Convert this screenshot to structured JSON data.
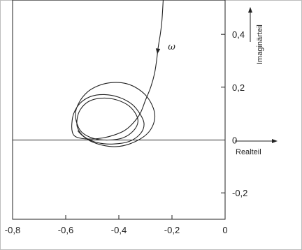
{
  "chart_data": {
    "type": "line",
    "title": "",
    "xlabel": "Realteil",
    "ylabel": "Imaginärteil",
    "xlim": [
      -0.8,
      0.0
    ],
    "ylim": [
      -0.3,
      0.53
    ],
    "x_ticks": [
      -0.8,
      -0.6,
      -0.4,
      -0.2,
      0
    ],
    "x_tick_labels": [
      "-0,8",
      "-0,6",
      "-0,4",
      "-0,2",
      "0"
    ],
    "y_ticks": [
      -0.2,
      0,
      0.2,
      0.4
    ],
    "y_tick_labels": [
      "-0,2",
      "0",
      "0,2",
      "0,4"
    ],
    "grid": false,
    "annotations": [
      {
        "text": "ω",
        "x": -0.215,
        "y": 0.355
      }
    ],
    "series": [
      {
        "points": [
          [
            -0.233,
            0.53
          ],
          [
            -0.238,
            0.45
          ],
          [
            -0.244,
            0.4
          ],
          [
            -0.252,
            0.35
          ],
          [
            -0.258,
            0.3
          ],
          [
            -0.266,
            0.25
          ],
          [
            -0.28,
            0.2
          ],
          [
            -0.3,
            0.15
          ],
          [
            -0.32,
            0.1
          ],
          [
            -0.35,
            0.06
          ],
          [
            -0.38,
            0.035
          ],
          [
            -0.42,
            0.018
          ],
          [
            -0.46,
            0.008
          ],
          [
            -0.5,
            0.004
          ],
          [
            -0.54,
            0.006
          ],
          [
            -0.565,
            0.014
          ],
          [
            -0.575,
            0.03
          ],
          [
            -0.577,
            0.06
          ],
          [
            -0.57,
            0.1
          ],
          [
            -0.545,
            0.14
          ],
          [
            -0.505,
            0.165
          ],
          [
            -0.455,
            0.172
          ],
          [
            -0.4,
            0.162
          ],
          [
            -0.35,
            0.135
          ],
          [
            -0.318,
            0.095
          ],
          [
            -0.305,
            0.06
          ],
          [
            -0.318,
            0.025
          ],
          [
            -0.36,
            -0.005
          ],
          [
            -0.42,
            -0.015
          ],
          [
            -0.48,
            -0.01
          ],
          [
            -0.53,
            0.012
          ],
          [
            -0.555,
            0.045
          ],
          [
            -0.557,
            0.08
          ],
          [
            -0.545,
            0.115
          ],
          [
            -0.515,
            0.145
          ],
          [
            -0.47,
            0.158
          ],
          [
            -0.42,
            0.155
          ],
          [
            -0.37,
            0.135
          ],
          [
            -0.34,
            0.105
          ],
          [
            -0.328,
            0.07
          ],
          [
            -0.345,
            0.035
          ],
          [
            -0.385,
            0.008
          ],
          [
            -0.44,
            0.0
          ],
          [
            -0.495,
            0.006
          ],
          [
            -0.54,
            0.03
          ],
          [
            -0.56,
            0.07
          ],
          [
            -0.562,
            0.11
          ],
          [
            -0.545,
            0.15
          ],
          [
            -0.52,
            0.18
          ],
          [
            -0.49,
            0.2
          ],
          [
            -0.45,
            0.214
          ],
          [
            -0.41,
            0.218
          ],
          [
            -0.37,
            0.213
          ],
          [
            -0.33,
            0.195
          ],
          [
            -0.295,
            0.165
          ],
          [
            -0.27,
            0.12
          ],
          [
            -0.265,
            0.08
          ],
          [
            -0.28,
            0.04
          ],
          [
            -0.31,
            0.01
          ],
          [
            -0.36,
            -0.015
          ],
          [
            -0.41,
            -0.025
          ],
          [
            -0.46,
            -0.02
          ],
          [
            -0.505,
            -0.005
          ],
          [
            -0.535,
            0.015
          ],
          [
            -0.555,
            0.035
          ]
        ]
      }
    ]
  }
}
